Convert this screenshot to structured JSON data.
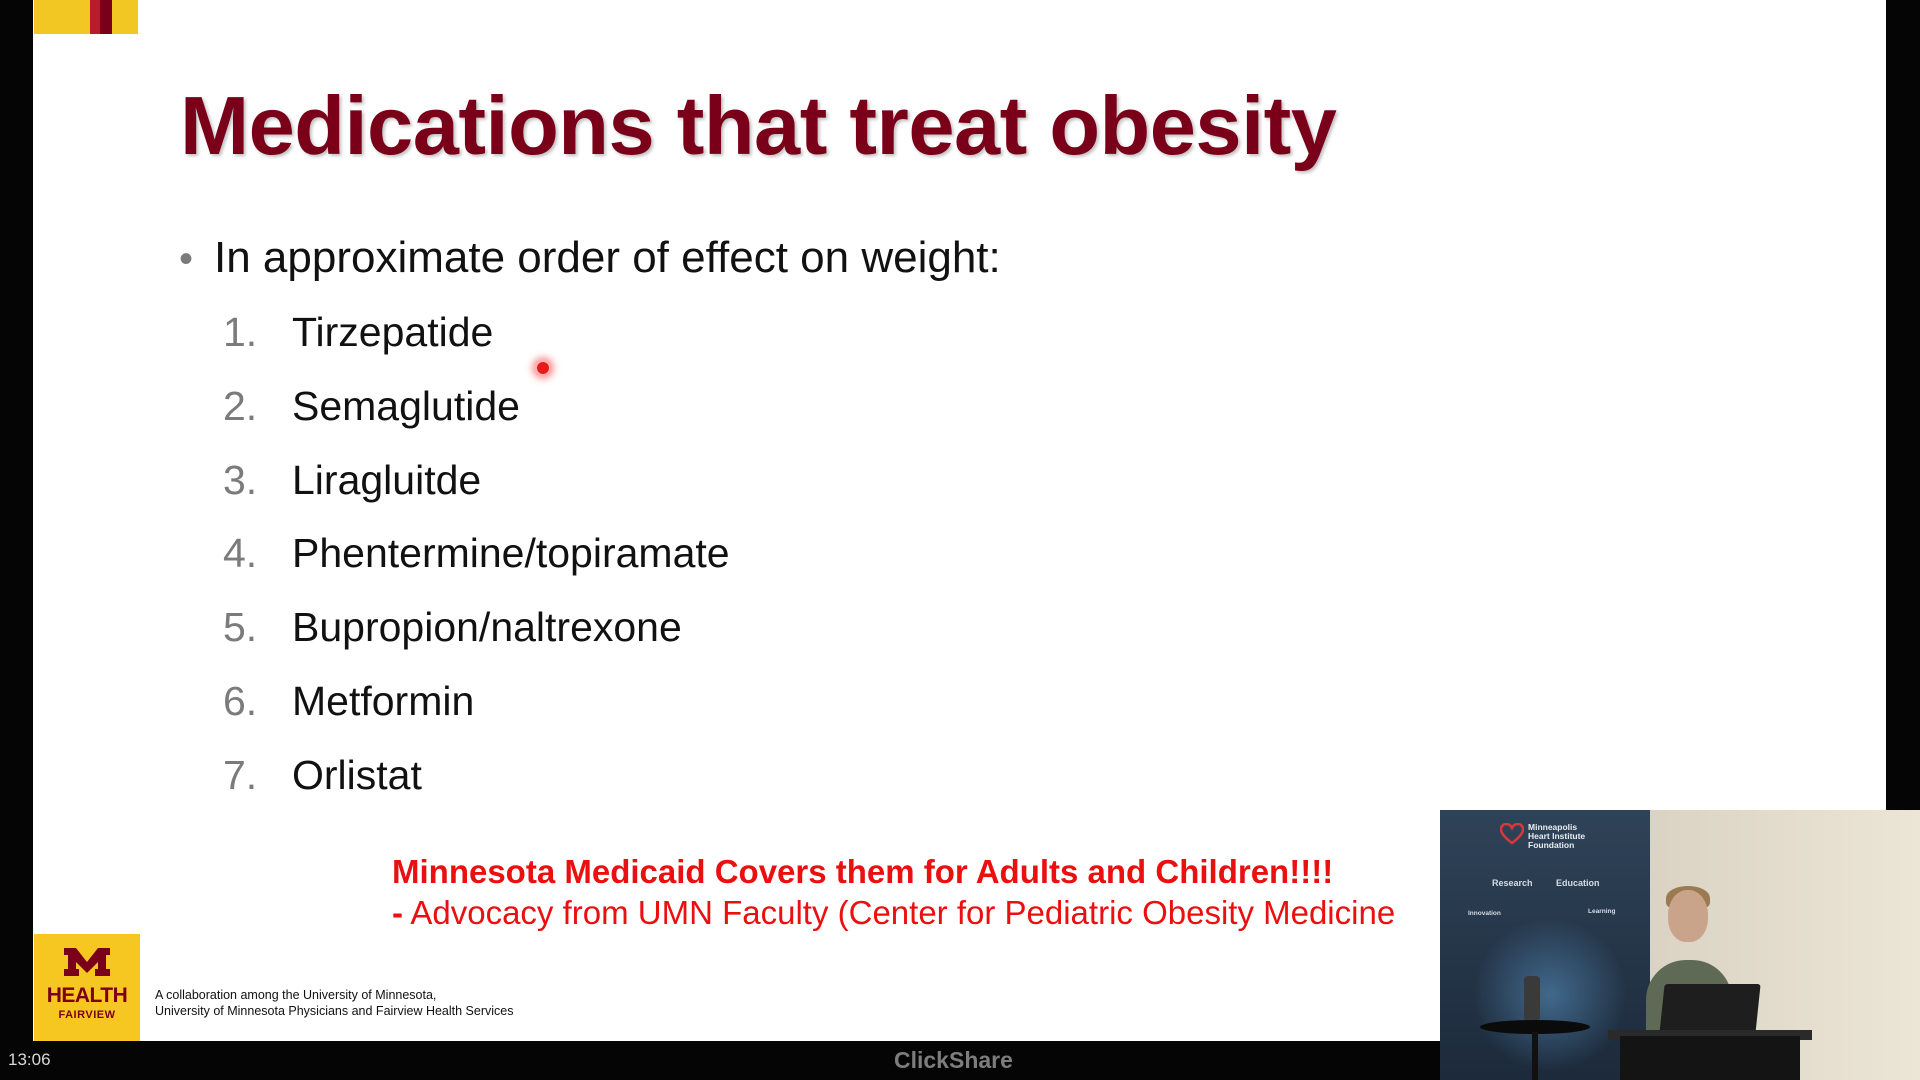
{
  "slide": {
    "title": "Medications that treat obesity",
    "bullet": "In approximate order of effect on weight:",
    "bullet_symbol": "•",
    "medications": [
      {
        "number": "1.",
        "name": "Tirzepatide"
      },
      {
        "number": "2.",
        "name": "Semaglutide"
      },
      {
        "number": "3.",
        "name": "Liragluitde"
      },
      {
        "number": "4.",
        "name": "Phentermine/topiramate"
      },
      {
        "number": "5.",
        "name": "Bupropion/naltrexone"
      },
      {
        "number": "6.",
        "name": "Metformin"
      },
      {
        "number": "7.",
        "name": "Orlistat"
      }
    ],
    "note_main": "Minnesota Medicaid Covers them for Adults and Children!!!!",
    "note_sub_dash": "-",
    "note_sub": "Advocacy from UMN Faculty (Center for Pediatric Obesity Medicine",
    "logo": {
      "brand": "HEALTH",
      "sub": "FAIRVIEW"
    },
    "footer_line1": "A collaboration among the University of Minnesota,",
    "footer_line2": "University of Minnesota Physicians and Fairview Health Services",
    "colors": {
      "title": "#7a0019",
      "note": "#ea1010",
      "logo_bg": "#f6c621"
    }
  },
  "video": {
    "org_name": "Minneapolis\nHeart Institute\nFoundation",
    "banner_labels": {
      "research": "Research",
      "education": "Education",
      "innovation": "Innovation",
      "learning": "Learning"
    }
  },
  "status": {
    "time": "13:06",
    "app_name": "ClickShare"
  }
}
